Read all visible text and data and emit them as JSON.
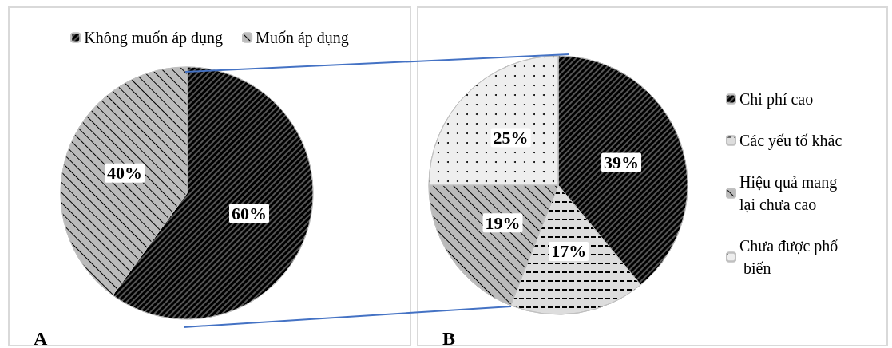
{
  "chart_data": [
    {
      "type": "pie",
      "categories": [
        "Không muốn áp dụng",
        "Muốn áp dụng"
      ],
      "values": [
        60,
        40
      ],
      "colors": [
        "#555555",
        "#bbbbbb"
      ],
      "value_labels": [
        "60%",
        "40%"
      ],
      "legend": "top",
      "annotations": [
        "A"
      ]
    },
    {
      "type": "pie",
      "categories": [
        "Chi phí cao",
        "Các yếu tố khác",
        "Hiệu quả mang lại chưa cao",
        "Chưa được phổ biến"
      ],
      "values": [
        39,
        17,
        19,
        25
      ],
      "colors": [
        "#555555",
        "#dddddd",
        "#bbbbbb",
        "#eeeeee"
      ],
      "value_labels": [
        "39%",
        "17%",
        "19%",
        "25%"
      ],
      "legend": "right",
      "annotations": [
        "B"
      ]
    }
  ]
}
